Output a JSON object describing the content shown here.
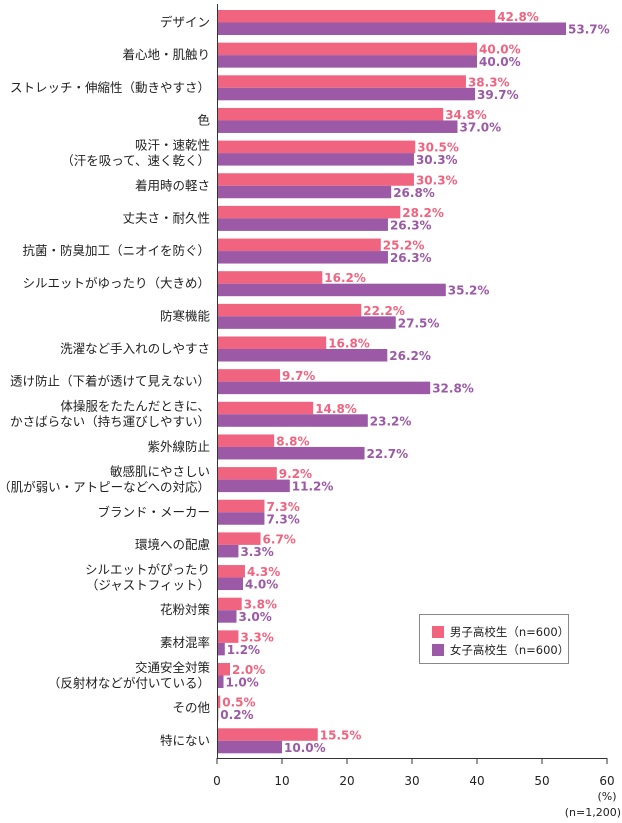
{
  "chart_data": {
    "type": "bar",
    "orientation": "horizontal",
    "categories": [
      [
        "デザイン"
      ],
      [
        "着心地・肌触り"
      ],
      [
        "ストレッチ・伸縮性（動きやすさ）"
      ],
      [
        "色"
      ],
      [
        "吸汗・速乾性",
        "（汗を吸って、速く乾く）"
      ],
      [
        "着用時の軽さ"
      ],
      [
        "丈夫さ・耐久性"
      ],
      [
        "抗菌・防臭加工（ニオイを防ぐ）"
      ],
      [
        "シルエットがゆったり（大きめ）"
      ],
      [
        "防寒機能"
      ],
      [
        "洗濯など手入れのしやすさ"
      ],
      [
        "透け防止（下着が透けて見えない）"
      ],
      [
        "体操服をたたんだときに、",
        "かさばらない（持ち運びしやすい）"
      ],
      [
        "紫外線防止"
      ],
      [
        "敏感肌にやさしい",
        "（肌が弱い・アトピーなどへの対応）"
      ],
      [
        "ブランド・メーカー"
      ],
      [
        "環境への配慮"
      ],
      [
        "シルエットがぴったり",
        "（ジャストフィット）"
      ],
      [
        "花粉対策"
      ],
      [
        "素材混率"
      ],
      [
        "交通安全対策",
        "（反射材などが付いている）"
      ],
      [
        "その他"
      ],
      [
        "特にない"
      ]
    ],
    "series": [
      {
        "name": "男子高校生（n=600）",
        "color": "#f0647f",
        "values": [
          42.8,
          40.0,
          38.3,
          34.8,
          30.5,
          30.3,
          28.2,
          25.2,
          16.2,
          22.2,
          16.8,
          9.7,
          14.8,
          8.8,
          9.2,
          7.3,
          6.7,
          4.3,
          3.8,
          3.3,
          2.0,
          0.5,
          15.5
        ]
      },
      {
        "name": "女子高校生（n=600）",
        "color": "#9b59a6",
        "values": [
          53.7,
          40.0,
          39.7,
          37.0,
          30.3,
          26.8,
          26.3,
          26.3,
          35.2,
          27.5,
          26.2,
          32.8,
          23.2,
          22.7,
          11.2,
          7.3,
          3.3,
          4.0,
          3.0,
          1.2,
          1.0,
          0.2,
          10.0
        ]
      }
    ],
    "xlim": [
      0,
      60
    ],
    "xticks": [
      "0",
      "10",
      "20",
      "30",
      "40",
      "50",
      "60"
    ],
    "unit_label": "(%)",
    "sample_label": "(n=1,200)",
    "legend_position": "bottom-right",
    "grid": false
  }
}
